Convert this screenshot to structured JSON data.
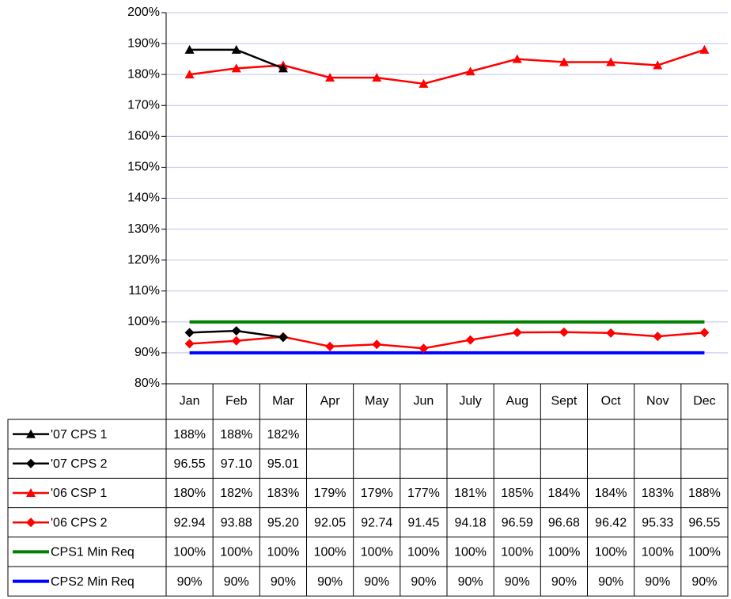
{
  "chart_data": {
    "type": "line",
    "categories": [
      "Jan",
      "Feb",
      "Mar",
      "Apr",
      "May",
      "Jun",
      "July",
      "Aug",
      "Sept",
      "Oct",
      "Nov",
      "Dec"
    ],
    "ylim": [
      80,
      200
    ],
    "yticks": [
      {
        "value": 80,
        "label": "80%"
      },
      {
        "value": 90,
        "label": "90%"
      },
      {
        "value": 100,
        "label": "100%"
      },
      {
        "value": 110,
        "label": "110%"
      },
      {
        "value": 120,
        "label": "120%"
      },
      {
        "value": 130,
        "label": "130%"
      },
      {
        "value": 140,
        "label": "140%"
      },
      {
        "value": 150,
        "label": "150%"
      },
      {
        "value": 160,
        "label": "160%"
      },
      {
        "value": 170,
        "label": "170%"
      },
      {
        "value": 180,
        "label": "180%"
      },
      {
        "value": 190,
        "label": "190%"
      },
      {
        "value": 200,
        "label": "200%"
      }
    ],
    "grid": true,
    "series": [
      {
        "name": "'07 CPS 1",
        "color": "#000000",
        "marker": "triangle",
        "values": [
          188,
          188,
          182,
          null,
          null,
          null,
          null,
          null,
          null,
          null,
          null,
          null
        ],
        "value_labels": [
          "188%",
          "188%",
          "182%",
          null,
          null,
          null,
          null,
          null,
          null,
          null,
          null,
          null
        ]
      },
      {
        "name": "'07 CPS 2",
        "color": "#000000",
        "marker": "diamond",
        "values": [
          96.55,
          97.1,
          95.01,
          null,
          null,
          null,
          null,
          null,
          null,
          null,
          null,
          null
        ],
        "value_labels": [
          "96.55",
          "97.10",
          "95.01",
          null,
          null,
          null,
          null,
          null,
          null,
          null,
          null,
          null
        ]
      },
      {
        "name": "'06 CSP 1",
        "color": "#ff0000",
        "marker": "triangle",
        "values": [
          180,
          182,
          183,
          179,
          179,
          177,
          181,
          185,
          184,
          184,
          183,
          188
        ],
        "value_labels": [
          "180%",
          "182%",
          "183%",
          "179%",
          "179%",
          "177%",
          "181%",
          "185%",
          "184%",
          "184%",
          "183%",
          "188%"
        ]
      },
      {
        "name": "'06 CPS 2",
        "color": "#ff0000",
        "marker": "diamond",
        "values": [
          92.94,
          93.88,
          95.2,
          92.05,
          92.74,
          91.45,
          94.18,
          96.59,
          96.68,
          96.42,
          95.33,
          96.55
        ],
        "value_labels": [
          "92.94",
          "93.88",
          "95.20",
          "92.05",
          "92.74",
          "91.45",
          "94.18",
          "96.59",
          "96.68",
          "96.42",
          "95.33",
          "96.55"
        ]
      },
      {
        "name": "CPS1 Min Req",
        "color": "#008000",
        "marker": "none",
        "values": [
          100,
          100,
          100,
          100,
          100,
          100,
          100,
          100,
          100,
          100,
          100,
          100
        ],
        "value_labels": [
          "100%",
          "100%",
          "100%",
          "100%",
          "100%",
          "100%",
          "100%",
          "100%",
          "100%",
          "100%",
          "100%",
          "100%"
        ]
      },
      {
        "name": "CPS2 Min Req",
        "color": "#0000ff",
        "marker": "none",
        "values": [
          90,
          90,
          90,
          90,
          90,
          90,
          90,
          90,
          90,
          90,
          90,
          90
        ],
        "value_labels": [
          "90%",
          "90%",
          "90%",
          "90%",
          "90%",
          "90%",
          "90%",
          "90%",
          "90%",
          "90%",
          "90%",
          "90%"
        ]
      }
    ]
  }
}
